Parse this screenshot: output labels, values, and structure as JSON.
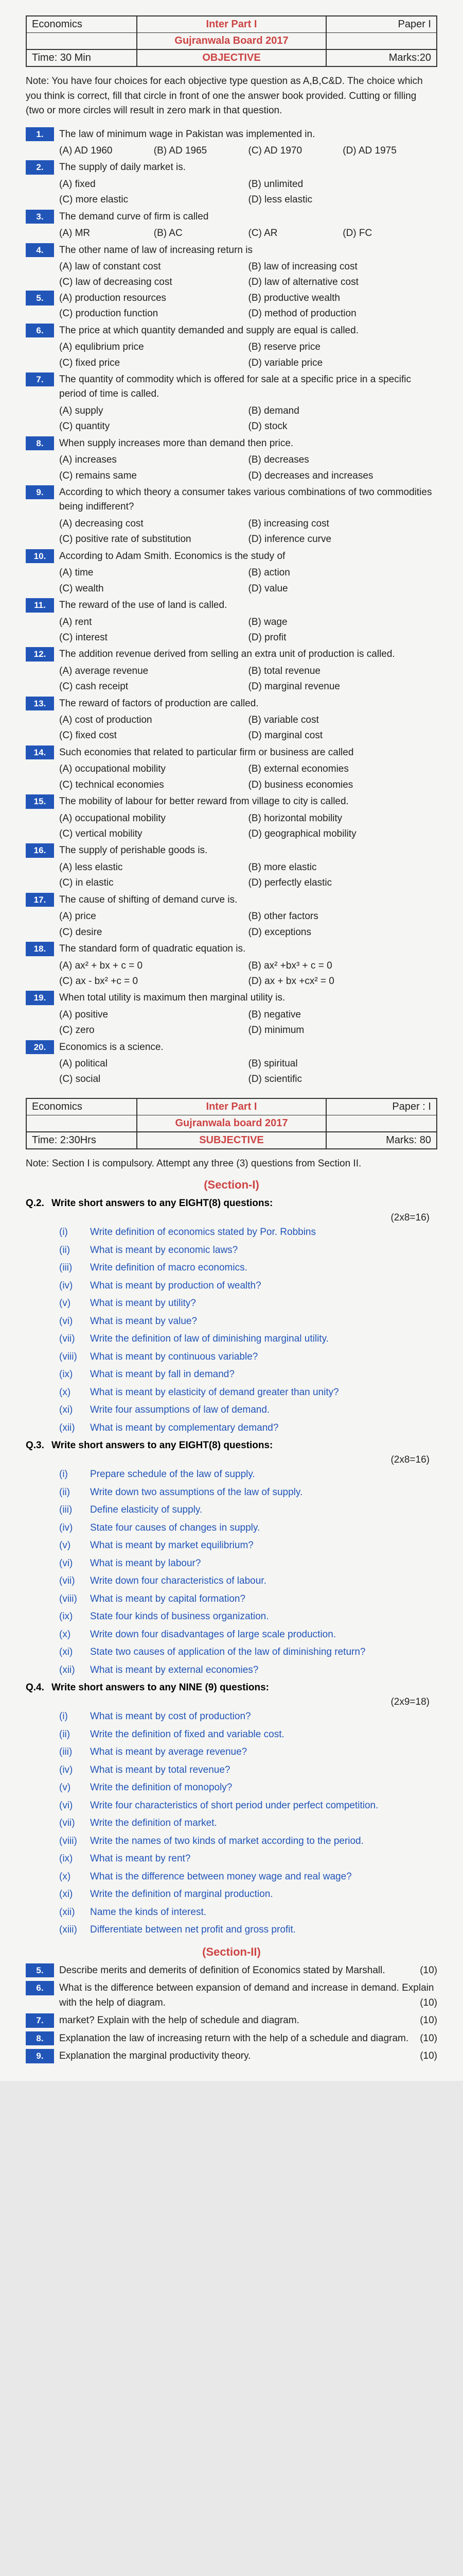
{
  "obj_header": {
    "subject": "Economics",
    "title_a": "Inter Part I",
    "title_b": "Gujranwala Board 2017",
    "paper": "Paper I",
    "time": "Time: 30 Min",
    "type": "OBJECTIVE",
    "marks": "Marks:20"
  },
  "note": "Note:  You have four choices for each objective type question as A,B,C&D. The choice which you think is correct, fill that circle in front of one the answer book provided. Cutting or filling (two or more circles will result in zero mark in that question.",
  "mcq": [
    {
      "n": "1.",
      "q": "The law of minimum wage in Pakistan was implemented in.",
      "o": [
        "(A) AD 1960",
        "(B) AD 1965",
        "(C) AD 1970",
        "(D) AD 1975"
      ],
      "c": 4
    },
    {
      "n": "2.",
      "q": "The supply of daily market is.",
      "o": [
        "(A) fixed",
        "(B) unlimited",
        "(C) more elastic",
        "(D) less elastic"
      ],
      "c": 2
    },
    {
      "n": "3.",
      "q": "The demand curve of firm is called",
      "o": [
        "(A) MR",
        "(B) AC",
        "(C) AR",
        "(D) FC"
      ],
      "c": 4
    },
    {
      "n": "4.",
      "q": "The other name of law of increasing return is",
      "o": [
        "(A) law of constant cost",
        "(B) law of increasing cost",
        "(C) law of decreasing cost",
        "(D) law of alternative cost"
      ],
      "c": 2
    },
    {
      "n": "5.",
      "q": "",
      "o": [
        "(A) production resources",
        "(B) productive wealth",
        "(C) production function",
        "(D) method of production"
      ],
      "c": 2
    },
    {
      "n": "6.",
      "q": "The price at which quantity demanded and supply are equal is called.",
      "o": [
        "(A) equlibrium price",
        "(B) reserve price",
        "(C) fixed price",
        "(D) variable price"
      ],
      "c": 2
    },
    {
      "n": "7.",
      "q": "The quantity of commodity which is offered for sale at a specific price in a specific period of time is called.",
      "o": [
        "(A) supply",
        "(B) demand",
        "(C) quantity",
        "(D) stock"
      ],
      "c": 2
    },
    {
      "n": "8.",
      "q": "When supply increases more than demand then price.",
      "o": [
        "(A) increases",
        "(B) decreases",
        "(C) remains same",
        "(D) decreases and increases"
      ],
      "c": 2
    },
    {
      "n": "9.",
      "q": "According to which theory a consumer takes various combinations of two commodities being indifferent?",
      "o": [
        "(A) decreasing cost",
        "(B) increasing cost",
        "(C) positive rate of substitution",
        "(D) inference curve"
      ],
      "c": 2
    },
    {
      "n": "10.",
      "q": "According to Adam Smith. Economics is the study of",
      "o": [
        "(A) time",
        "(B) action",
        "(C) wealth",
        "(D) value"
      ],
      "c": 2
    },
    {
      "n": "11.",
      "q": "The reward of the use of land is called.",
      "o": [
        "(A) rent",
        "(B) wage",
        "(C) interest",
        "(D) profit"
      ],
      "c": 2
    },
    {
      "n": "12.",
      "q": "The addition revenue derived from selling an extra unit of production is called.",
      "o": [
        "(A) average revenue",
        "(B) total revenue",
        "(C) cash receipt",
        "(D) marginal revenue"
      ],
      "c": 2
    },
    {
      "n": "13.",
      "q": "The reward of factors of production are called.",
      "o": [
        "(A) cost of production",
        "(B) variable cost",
        "(C) fixed cost",
        "(D) marginal cost"
      ],
      "c": 2
    },
    {
      "n": "14.",
      "q": "Such economies that related to particular firm or business are called",
      "o": [
        "(A) occupational mobility",
        "(B) external economies",
        "(C) technical economies",
        "(D) business economies"
      ],
      "c": 2
    },
    {
      "n": "15.",
      "q": "The mobility of labour for better reward from village to city is called.",
      "o": [
        "(A) occupational mobility",
        "(B) horizontal mobility",
        "(C) vertical mobility",
        "(D) geographical mobility"
      ],
      "c": 2
    },
    {
      "n": "16.",
      "q": "The supply of perishable goods is.",
      "o": [
        "(A) less elastic",
        "(B) more elastic",
        "(C) in elastic",
        "(D) perfectly elastic"
      ],
      "c": 2
    },
    {
      "n": "17.",
      "q": "The cause of shifting of demand curve is.",
      "o": [
        "(A) price",
        "(B) other factors",
        "(C) desire",
        "(D) exceptions"
      ],
      "c": 2
    },
    {
      "n": "18.",
      "q": "The standard form of quadratic equation is.",
      "o": [
        "(A) ax² + bx + c = 0",
        "(B) ax² +bx³ + c = 0",
        "(C) ax - bx² +c = 0",
        "(D) ax + bx +cx² = 0"
      ],
      "c": 2
    },
    {
      "n": "19.",
      "q": "When total utility is maximum then marginal utility is.",
      "o": [
        "(A) positive",
        "(B) negative",
        "(C) zero",
        "(D) minimum"
      ],
      "c": 2
    },
    {
      "n": "20.",
      "q": "Economics is a science.",
      "o": [
        "(A) political",
        "(B) spiritual",
        "(C) social",
        "(D) scientific"
      ],
      "c": 2
    }
  ],
  "subj_header": {
    "subject": "Economics",
    "title_a": "Inter Part I",
    "title_b": "Gujranwala board 2017",
    "paper": "Paper : I",
    "time": "Time: 2:30Hrs",
    "type": "SUBJECTIVE",
    "marks": "Marks: 80"
  },
  "subj_note": "Note: Section I is compulsory. Attempt any three (3) questions from Section II.",
  "sec1": "(Section-I)",
  "q2h": {
    "l": "Q.2.",
    "m": "Write short answers to any EIGHT(8) questions:",
    "r": "(2x8=16)"
  },
  "q2": [
    {
      "n": "(i)",
      "t": "Write definition of economics stated by Por. Robbins"
    },
    {
      "n": "(ii)",
      "t": "What is meant by economic laws?"
    },
    {
      "n": "(iii)",
      "t": "Write definition of macro economics."
    },
    {
      "n": "(iv)",
      "t": "What is meant by production of wealth?"
    },
    {
      "n": "(v)",
      "t": "What is meant by utility?"
    },
    {
      "n": "(vi)",
      "t": "What is meant by value?"
    },
    {
      "n": "(vii)",
      "t": "Write the definition of law of diminishing marginal utility."
    },
    {
      "n": "(viii)",
      "t": "What is meant by continuous variable?"
    },
    {
      "n": "(ix)",
      "t": "What is meant by fall in demand?"
    },
    {
      "n": "(x)",
      "t": "What is meant by elasticity of demand greater than unity?"
    },
    {
      "n": "(xi)",
      "t": "Write four assumptions of law of demand."
    },
    {
      "n": "(xii)",
      "t": "What is meant by complementary demand?"
    }
  ],
  "q3h": {
    "l": "Q.3.",
    "m": "Write short answers to any EIGHT(8) questions:",
    "r": "(2x8=16)"
  },
  "q3": [
    {
      "n": "(i)",
      "t": "Prepare schedule of the law of supply."
    },
    {
      "n": "(ii)",
      "t": "Write down two assumptions of the law of supply."
    },
    {
      "n": "(iii)",
      "t": "Define elasticity of supply."
    },
    {
      "n": "(iv)",
      "t": "State four causes of changes in supply."
    },
    {
      "n": "(v)",
      "t": "What is meant by market equilibrium?"
    },
    {
      "n": "(vi)",
      "t": "What is meant by labour?"
    },
    {
      "n": "(vii)",
      "t": "Write down four characteristics of labour."
    },
    {
      "n": "(viii)",
      "t": "What is meant by capital formation?"
    },
    {
      "n": "(ix)",
      "t": "State four kinds of business organization."
    },
    {
      "n": "(x)",
      "t": "Write down four disadvantages of large scale production."
    },
    {
      "n": "(xi)",
      "t": "State two causes of application of the law of diminishing return?"
    },
    {
      "n": "(xii)",
      "t": "What is meant by external economies?"
    }
  ],
  "q4h": {
    "l": "Q.4.",
    "m": "Write short answers to any NINE (9) questions:",
    "r": "(2x9=18)"
  },
  "q4": [
    {
      "n": "(i)",
      "t": "What is meant by cost of production?"
    },
    {
      "n": "(ii)",
      "t": "Write the definition of fixed and variable cost."
    },
    {
      "n": "(iii)",
      "t": "What is meant by average revenue?"
    },
    {
      "n": "(iv)",
      "t": "What is meant by total revenue?"
    },
    {
      "n": "(v)",
      "t": "Write the definition of monopoly?"
    },
    {
      "n": "(vi)",
      "t": "Write four characteristics of short period under perfect competition."
    },
    {
      "n": "(vii)",
      "t": "Write the definition of market."
    },
    {
      "n": "(viii)",
      "t": "Write the names of two kinds of market according to the period."
    },
    {
      "n": "(ix)",
      "t": "What is meant by rent?"
    },
    {
      "n": "(x)",
      "t": "What is the difference between money wage and real wage?"
    },
    {
      "n": "(xi)",
      "t": "Write the definition of marginal production."
    },
    {
      "n": "(xii)",
      "t": "Name the kinds of interest."
    },
    {
      "n": "(xiii)",
      "t": "Differentiate between net profit and gross profit."
    }
  ],
  "sec2": "(Section-II)",
  "long": [
    {
      "n": "5.",
      "t": "Describe merits and demerits of definition of Economics stated by Marshall.",
      "m": "(10)"
    },
    {
      "n": "6.",
      "t": "What is the difference between expansion of demand and increase in demand. Explain with the help of diagram.",
      "m": "(10)"
    },
    {
      "n": "7.",
      "t": "market? Explain with the help of schedule and diagram.",
      "m": "(10)"
    },
    {
      "n": "8.",
      "t": "Explanation the law of increasing return with the help of a schedule and diagram.",
      "m": "(10)"
    },
    {
      "n": "9.",
      "t": "Explanation the marginal productivity theory.",
      "m": "(10)"
    }
  ]
}
